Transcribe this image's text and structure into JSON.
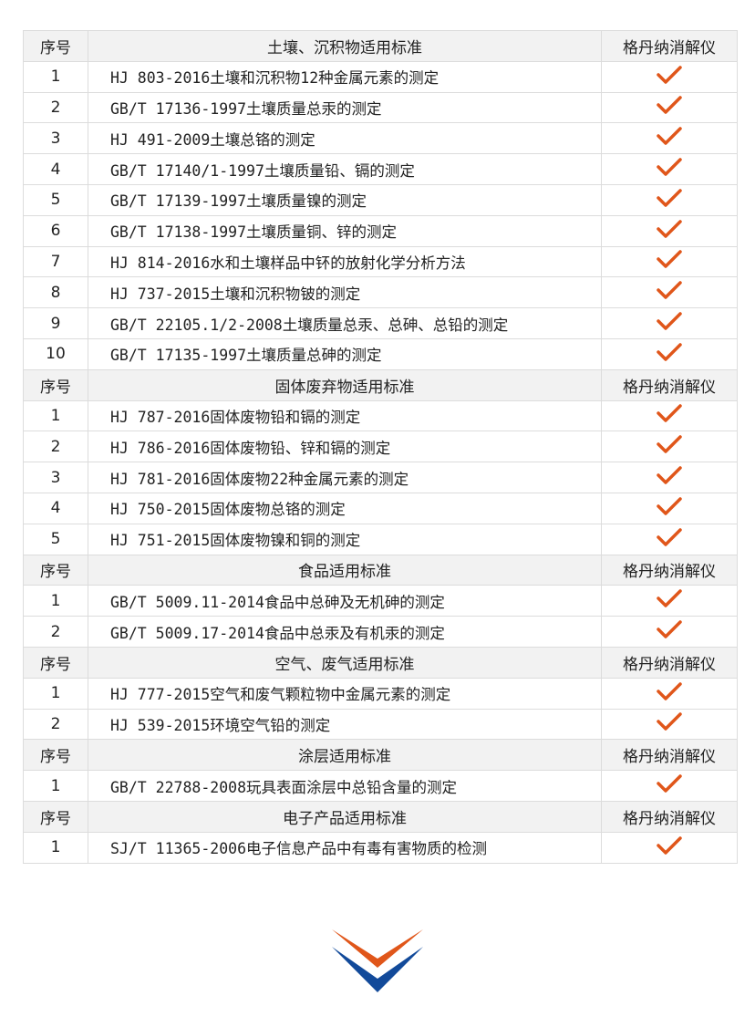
{
  "colors": {
    "check": "#e0561a",
    "logo_orange": "#e0561a",
    "logo_blue": "#124a9a",
    "header_bg": "#f2f2f2"
  },
  "sections": [
    {
      "col_no": "序号",
      "title": "土壤、沉积物适用标准",
      "col_device": "格丹纳消解仪",
      "rows": [
        {
          "no": "1",
          "std": "HJ 803-2016土壤和沉积物12种金属元素的测定"
        },
        {
          "no": "2",
          "std": "GB/T 17136-1997土壤质量总汞的测定"
        },
        {
          "no": "3",
          "std": "HJ 491-2009土壤总铬的测定"
        },
        {
          "no": "4",
          "std": "GB/T 17140/1-1997土壤质量铅、镉的测定"
        },
        {
          "no": "5",
          "std": "GB/T 17139-1997土壤质量镍的测定"
        },
        {
          "no": "6",
          "std": "GB/T 17138-1997土壤质量铜、锌的测定"
        },
        {
          "no": "7",
          "std": "HJ 814-2016水和土壤样品中钚的放射化学分析方法"
        },
        {
          "no": "8",
          "std": "HJ 737-2015土壤和沉积物铍的测定"
        },
        {
          "no": "9",
          "std": "GB/T 22105.1/2-2008土壤质量总汞、总砷、总铅的测定"
        },
        {
          "no": "10",
          "std": "GB/T 17135-1997土壤质量总砷的测定"
        }
      ]
    },
    {
      "col_no": "序号",
      "title": "固体废弃物适用标准",
      "col_device": "格丹纳消解仪",
      "rows": [
        {
          "no": "1",
          "std": "HJ 787-2016固体废物铅和镉的测定"
        },
        {
          "no": "2",
          "std": "HJ 786-2016固体废物铅、锌和镉的测定"
        },
        {
          "no": "3",
          "std": "HJ 781-2016固体废物22种金属元素的测定"
        },
        {
          "no": "4",
          "std": "HJ 750-2015固体废物总铬的测定"
        },
        {
          "no": "5",
          "std": "HJ 751-2015固体废物镍和铜的测定"
        }
      ]
    },
    {
      "col_no": "序号",
      "title": "食品适用标准",
      "col_device": "格丹纳消解仪",
      "rows": [
        {
          "no": "1",
          "std": "GB/T 5009.11-2014食品中总砷及无机砷的测定"
        },
        {
          "no": "2",
          "std": "GB/T 5009.17-2014食品中总汞及有机汞的测定"
        }
      ]
    },
    {
      "col_no": "序号",
      "title": "空气、废气适用标准",
      "col_device": "格丹纳消解仪",
      "rows": [
        {
          "no": "1",
          "std": "HJ 777-2015空气和废气颗粒物中金属元素的测定"
        },
        {
          "no": "2",
          "std": "HJ 539-2015环境空气铅的测定"
        }
      ]
    },
    {
      "col_no": "序号",
      "title": "涂层适用标准",
      "col_device": "格丹纳消解仪",
      "rows": [
        {
          "no": "1",
          "std": "GB/T 22788-2008玩具表面涂层中总铅含量的测定"
        }
      ]
    },
    {
      "col_no": "序号",
      "title": "电子产品适用标准",
      "col_device": "格丹纳消解仪",
      "rows": [
        {
          "no": "1",
          "std": "SJ/T 11365-2006电子信息产品中有毒有害物质的检测"
        }
      ]
    }
  ]
}
